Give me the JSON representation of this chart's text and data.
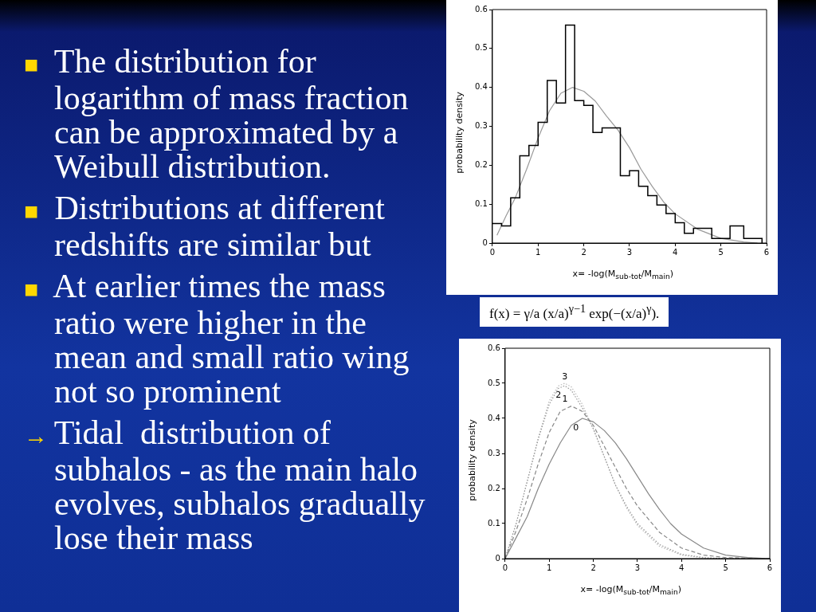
{
  "chart_data": [
    {
      "type": "other",
      "annotations": [
        "■ The distribution for logarithm of mass fraction can be approximated by a Weibull distribution.",
        "■ Distributions at different redshifts are similar but",
        "■ At earlier times the mass ratio were higher in the mean and small ratio wing not so prominent",
        "→ Tidal  distribution of subhalos - as the main halo evolves, subhalos gradually lose their mass"
      ]
    },
    {
      "type": "histogram",
      "xlabel": "x= -log(M$_{sub-tot}$/M$_{main}$)",
      "ylabel": "probability density",
      "xlim": [
        0,
        6
      ],
      "ylim": [
        0,
        0.6
      ],
      "xticks": [
        0,
        1,
        2,
        3,
        4,
        5,
        6
      ],
      "yticks": [
        0,
        0.1,
        0.2,
        0.3,
        0.4,
        0.5,
        0.6
      ],
      "annotations": [
        "f(x) = γ/a (x/a)$^{γ−1}$ exp(−(x/a)$^{γ}$)."
      ],
      "series": [
        {
          "type": "histogram",
          "color": "#000000",
          "bins": [
            0,
            0.2,
            0.4,
            0.6,
            0.8,
            1.0,
            1.2,
            1.4,
            1.6,
            1.8,
            2.0,
            2.2,
            2.4,
            2.6,
            2.8,
            3.0,
            3.2,
            3.4,
            3.6,
            3.8,
            4.0,
            4.2,
            4.4,
            4.6,
            4.8,
            5.0,
            5.2,
            5.5,
            5.9
          ],
          "values": [
            0.05,
            0.044,
            0.116,
            0.224,
            0.251,
            0.31,
            0.418,
            0.36,
            0.56,
            0.366,
            0.354,
            0.284,
            0.296,
            0.296,
            0.173,
            0.186,
            0.146,
            0.122,
            0.098,
            0.076,
            0.052,
            0.025,
            0.038,
            0.038,
            0.012,
            0.012,
            0.044,
            0.012
          ]
        },
        {
          "type": "line",
          "color": "#999999",
          "x": [
            0.1,
            0.3,
            0.5,
            0.75,
            1.0,
            1.25,
            1.5,
            1.75,
            2.0,
            2.25,
            2.5,
            2.75,
            3.0,
            3.25,
            3.5,
            3.75,
            4.0,
            4.5,
            5.0,
            5.5,
            5.8
          ],
          "values": [
            0.02,
            0.07,
            0.116,
            0.19,
            0.27,
            0.34,
            0.385,
            0.4,
            0.39,
            0.365,
            0.326,
            0.29,
            0.245,
            0.19,
            0.145,
            0.105,
            0.075,
            0.035,
            0.012,
            0.003,
            0.0
          ]
        }
      ]
    },
    {
      "type": "line",
      "xlim": [
        0,
        6
      ],
      "ylim": [
        0,
        0.6
      ],
      "xticks": [
        0,
        1,
        2,
        3,
        4,
        5,
        6
      ],
      "yticks": [
        0,
        0.1,
        0.2,
        0.3,
        0.4,
        0.5,
        0.6
      ],
      "xlabel": "x= -log(M$_{sub-tot}$/M$_{main}$)",
      "ylabel": "probability density",
      "series": [
        {
          "name": "0",
          "color": "#888888",
          "line_style": "solid",
          "x": [
            0,
            0.25,
            0.5,
            0.75,
            1.0,
            1.25,
            1.5,
            1.75,
            2.0,
            2.25,
            2.5,
            2.75,
            3.0,
            3.25,
            3.5,
            3.75,
            4.0,
            4.5,
            5.0,
            5.5,
            6.0
          ],
          "values": [
            0,
            0.06,
            0.12,
            0.2,
            0.27,
            0.33,
            0.38,
            0.4,
            0.39,
            0.365,
            0.33,
            0.285,
            0.235,
            0.185,
            0.14,
            0.1,
            0.07,
            0.03,
            0.01,
            0.003,
            0
          ]
        },
        {
          "name": "1",
          "color": "#888888",
          "line_style": "dashed",
          "x": [
            0,
            0.25,
            0.5,
            0.75,
            1.0,
            1.25,
            1.5,
            1.75,
            2.0,
            2.25,
            2.5,
            2.75,
            3.0,
            3.5,
            4.0,
            4.5,
            5.0,
            6.0
          ],
          "values": [
            0,
            0.08,
            0.17,
            0.27,
            0.36,
            0.42,
            0.435,
            0.42,
            0.38,
            0.32,
            0.26,
            0.2,
            0.15,
            0.075,
            0.03,
            0.01,
            0.003,
            0
          ]
        },
        {
          "name": "2",
          "color": "#999999",
          "line_style": "dotted",
          "x": [
            0,
            0.25,
            0.5,
            0.75,
            1.0,
            1.2,
            1.35,
            1.5,
            1.75,
            2.0,
            2.25,
            2.5,
            2.75,
            3.0,
            3.5,
            4.0,
            4.5,
            5.0,
            6.0
          ],
          "values": [
            0,
            0.1,
            0.22,
            0.34,
            0.44,
            0.485,
            0.493,
            0.48,
            0.43,
            0.37,
            0.29,
            0.21,
            0.15,
            0.1,
            0.04,
            0.012,
            0.003,
            0,
            0
          ]
        },
        {
          "name": "3",
          "color": "#bbbbbb",
          "line_style": "dotted",
          "x": [
            0,
            0.25,
            0.5,
            0.75,
            1.0,
            1.2,
            1.35,
            1.5,
            1.75,
            2.0,
            2.25,
            2.5,
            2.75,
            3.0,
            3.5,
            4.0,
            4.5,
            5.0,
            6.0
          ],
          "values": [
            0,
            0.1,
            0.22,
            0.345,
            0.45,
            0.492,
            0.5,
            0.49,
            0.44,
            0.37,
            0.29,
            0.21,
            0.145,
            0.095,
            0.035,
            0.01,
            0.002,
            0,
            0
          ]
        }
      ]
    }
  ]
}
